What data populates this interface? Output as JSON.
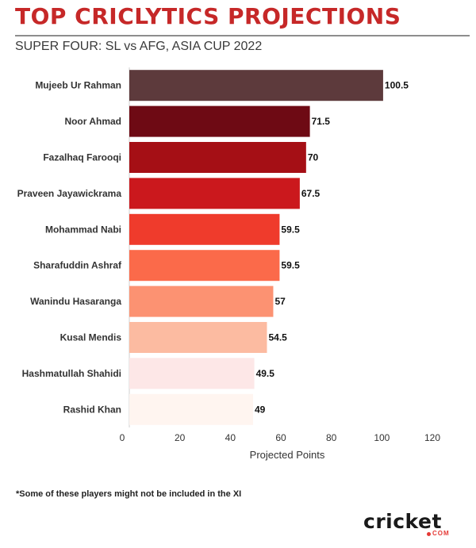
{
  "header": {
    "title": "TOP CRICLYTICS PROJECTIONS",
    "subtitle": "SUPER FOUR: SL vs AFG, ASIA CUP 2022"
  },
  "footnote": "*Some of these players might not be included in the XI",
  "logo": {
    "main": "cricket",
    "sub": "COM"
  },
  "chart_data": {
    "type": "bar",
    "orientation": "horizontal",
    "categories": [
      "Mujeeb Ur Rahman",
      "Noor Ahmad",
      "Fazalhaq Farooqi",
      "Praveen Jayawickrama",
      "Mohammad Nabi",
      "Sharafuddin Ashraf",
      "Wanindu Hasaranga",
      "Kusal Mendis",
      "Hashmatullah Shahidi",
      "Rashid Khan"
    ],
    "values": [
      100.5,
      71.5,
      70,
      67.5,
      59.5,
      59.5,
      57,
      54.5,
      49.5,
      49
    ],
    "data_labels": [
      "100.5",
      "71.5",
      "70",
      "67.5",
      "59.5",
      "59.5",
      "57",
      "54.5",
      "49.5",
      "49"
    ],
    "colors": [
      "#5d3a3c",
      "#6e0a14",
      "#a50f15",
      "#cb181d",
      "#ef3b2c",
      "#fb6a4a",
      "#fc9272",
      "#fcbba1",
      "#fde7e7",
      "#fff5f0"
    ],
    "xlabel": "Projected Points",
    "xlim": [
      0,
      120
    ],
    "xticks": [
      0,
      20,
      40,
      60,
      80,
      100,
      120
    ],
    "grid": false,
    "legend": "none"
  }
}
